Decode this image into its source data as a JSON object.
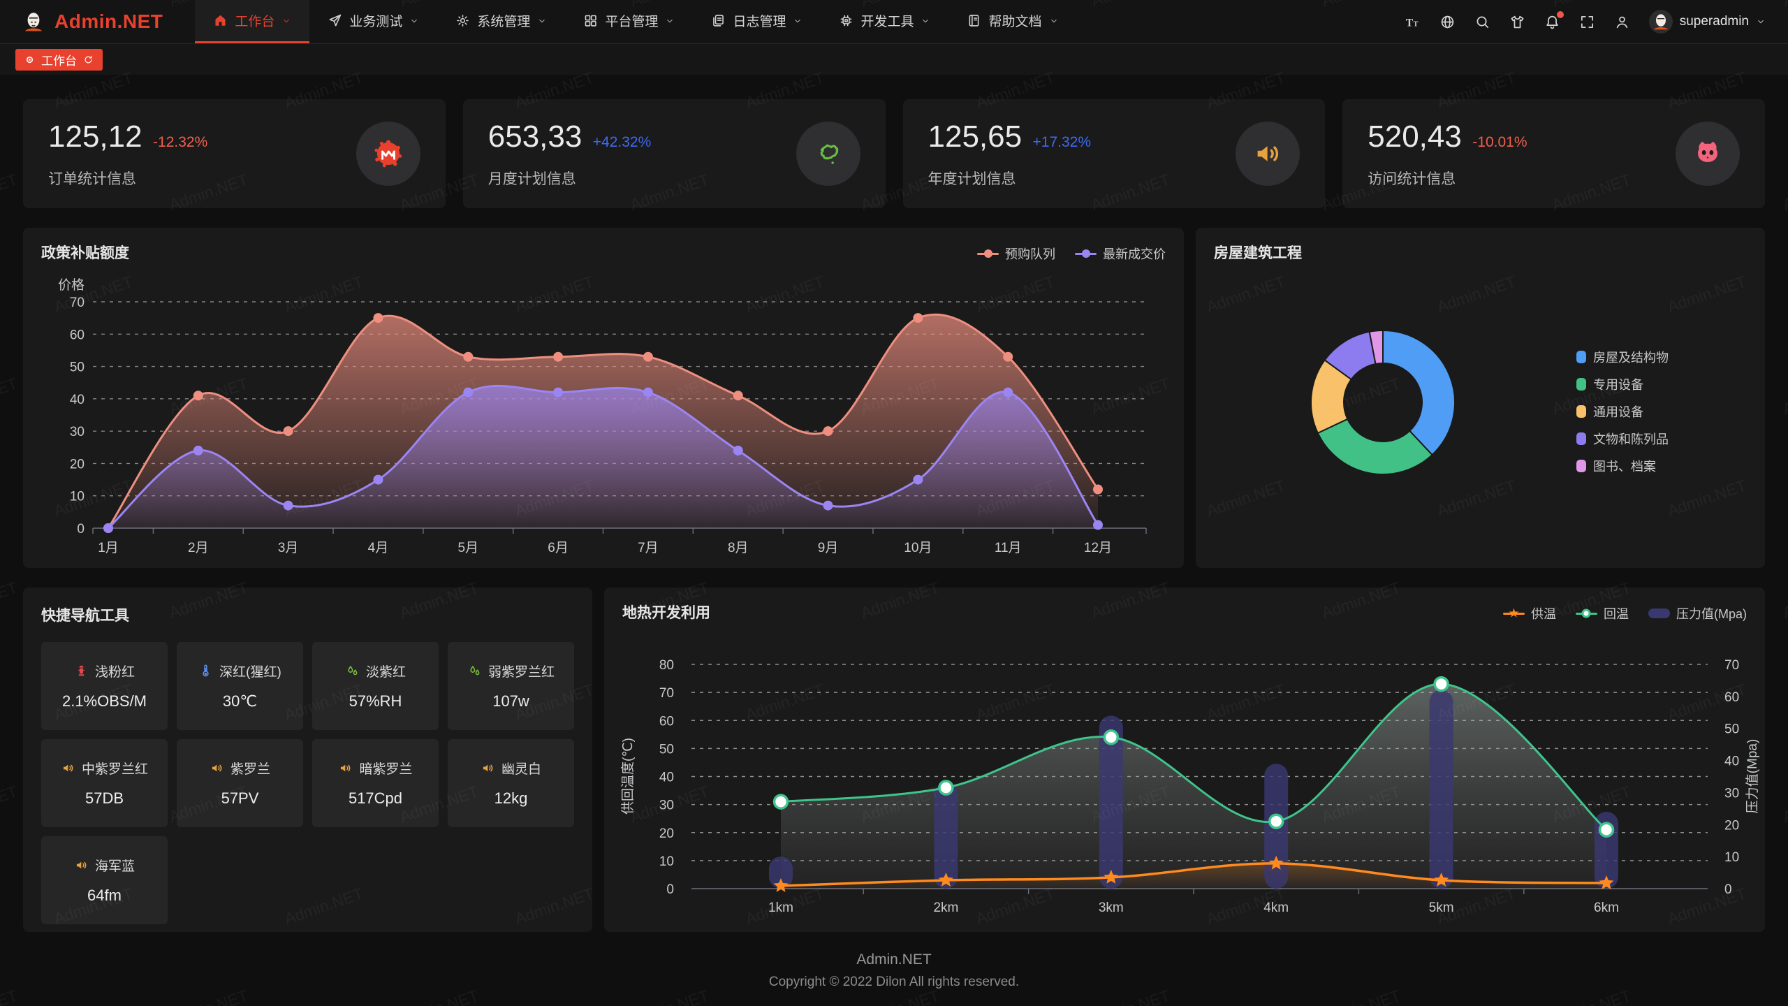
{
  "navbar": {
    "logo_text": "Admin.NET",
    "menu": [
      {
        "id": "workbench",
        "label": "工作台",
        "icon": "home-icon",
        "active": true
      },
      {
        "id": "business-test",
        "label": "业务测试",
        "icon": "send-icon",
        "active": false
      },
      {
        "id": "system-manage",
        "label": "系统管理",
        "icon": "gear-icon",
        "active": false
      },
      {
        "id": "platform-manage",
        "label": "平台管理",
        "icon": "grid-icon",
        "active": false
      },
      {
        "id": "log-manage",
        "label": "日志管理",
        "icon": "document-icon",
        "active": false
      },
      {
        "id": "dev-tools",
        "label": "开发工具",
        "icon": "cpu-icon",
        "active": false
      },
      {
        "id": "help-docs",
        "label": "帮助文档",
        "icon": "book-icon",
        "active": false
      }
    ],
    "tools": [
      {
        "id": "font-size",
        "icon": "font-size-icon",
        "badge": false
      },
      {
        "id": "language",
        "icon": "language-icon",
        "badge": false
      },
      {
        "id": "search",
        "icon": "search-icon",
        "badge": false
      },
      {
        "id": "theme",
        "icon": "theme-icon",
        "badge": false
      },
      {
        "id": "notification",
        "icon": "bell-icon",
        "badge": true
      },
      {
        "id": "fullscreen",
        "icon": "fullscreen-icon",
        "badge": false
      },
      {
        "id": "profile",
        "icon": "user-icon",
        "badge": false
      }
    ],
    "username": "superadmin"
  },
  "tabbar": {
    "active_tab": "工作台"
  },
  "stats": [
    {
      "value": "125,12",
      "delta": "-12.32%",
      "trend": "down",
      "label": "订单统计信息",
      "icon": "meetup-icon",
      "icon_color": "#e8402d"
    },
    {
      "value": "653,33",
      "delta": "+42.32%",
      "trend": "up",
      "label": "月度计划信息",
      "icon": "china-map-icon",
      "icon_color": "#6abf40"
    },
    {
      "value": "125,65",
      "delta": "+17.32%",
      "trend": "up",
      "label": "年度计划信息",
      "icon": "speaker-icon",
      "icon_color": "#e6a23c"
    },
    {
      "value": "520,43",
      "delta": "-10.01%",
      "trend": "down",
      "label": "访问统计信息",
      "icon": "octocat-icon",
      "icon_color": "#f2647c"
    }
  ],
  "chart_data": [
    {
      "id": "subsidy",
      "type": "area",
      "title": "政策补贴额度",
      "ylabel": "价格",
      "ylim": [
        0,
        70
      ],
      "ytick_step": 10,
      "grid": true,
      "legend_position": "top-right",
      "categories": [
        "1月",
        "2月",
        "3月",
        "4月",
        "5月",
        "6月",
        "7月",
        "8月",
        "9月",
        "10月",
        "11月",
        "12月"
      ],
      "series": [
        {
          "name": "预购队列",
          "color": "#ee8f80",
          "values": [
            0,
            41,
            30,
            65,
            53,
            53,
            53,
            41,
            30,
            65,
            53,
            12
          ]
        },
        {
          "name": "最新成交价",
          "color": "#9b85f2",
          "values": [
            0,
            24,
            7,
            15,
            42,
            42,
            42,
            24,
            7,
            15,
            42,
            1
          ]
        }
      ]
    },
    {
      "id": "housing",
      "type": "pie",
      "title": "房屋建筑工程",
      "labels": [
        "房屋及结构物",
        "专用设备",
        "通用设备",
        "文物和陈列品",
        "图书、档案"
      ],
      "values": [
        38,
        30,
        17,
        12,
        3
      ],
      "colors": [
        "#4f9df5",
        "#41c185",
        "#f8c16a",
        "#8d7cf0",
        "#e097e8"
      ],
      "legend_position": "right"
    },
    {
      "id": "geothermal",
      "type": "line-bar",
      "title": "地热开发利用",
      "categories": [
        "1km",
        "2km",
        "3km",
        "4km",
        "5km",
        "6km"
      ],
      "ylabel_left": "供回温度(℃)",
      "ylim_left": [
        0,
        80
      ],
      "ylabel_right": "压力值(Mpa)",
      "ylim_right": [
        0,
        70
      ],
      "grid": true,
      "legend_position": "top-right",
      "series": [
        {
          "name": "供温",
          "type": "line",
          "axis": "left",
          "marker": "star",
          "color": "#ff8a1e",
          "values": [
            1,
            3,
            4,
            9,
            3,
            2
          ]
        },
        {
          "name": "回温",
          "type": "line",
          "axis": "left",
          "marker": "circle",
          "color": "#3ec58c",
          "values": [
            31,
            36,
            54,
            24,
            73,
            21
          ]
        },
        {
          "name": "压力值(Mpa)",
          "type": "bar",
          "axis": "right",
          "color": "#3a3870",
          "values": [
            10,
            33,
            54,
            39,
            62,
            24
          ]
        }
      ]
    }
  ],
  "quicknav": {
    "title": "快捷导航工具",
    "items": [
      {
        "icon": "hydrant-icon",
        "icon_color": "#e0484a",
        "name": "浅粉红",
        "value": "2.1%OBS/M"
      },
      {
        "icon": "thermometer-icon",
        "icon_color": "#5b8ff5",
        "name": "深红(猩红)",
        "value": "30℃"
      },
      {
        "icon": "drops-icon",
        "icon_color": "#7ac23c",
        "name": "淡紫红",
        "value": "57%RH"
      },
      {
        "icon": "drops-icon",
        "icon_color": "#7ac23c",
        "name": "弱紫罗兰红",
        "value": "107w"
      },
      {
        "icon": "speaker-icon",
        "icon_color": "#e6a23c",
        "name": "中紫罗兰红",
        "value": "57DB"
      },
      {
        "icon": "speaker-icon",
        "icon_color": "#e6a23c",
        "name": "紫罗兰",
        "value": "57PV"
      },
      {
        "icon": "speaker-icon",
        "icon_color": "#e6a23c",
        "name": "暗紫罗兰",
        "value": "517Cpd"
      },
      {
        "icon": "speaker-icon",
        "icon_color": "#e6a23c",
        "name": "幽灵白",
        "value": "12kg"
      },
      {
        "icon": "speaker-icon",
        "icon_color": "#e6a23c",
        "name": "海军蓝",
        "value": "64fm"
      }
    ]
  },
  "footer": {
    "line1": "Admin.NET",
    "line2": "Copyright © 2022 Dilon All rights reserved."
  },
  "watermark": {
    "text": "Admin.NET"
  },
  "colors": {
    "accent": "#e8412d",
    "delta_up": "#3e6af0",
    "delta_down": "#f25e4d",
    "card_bg": "#1a1a1a",
    "page_bg": "#0f0f10"
  }
}
